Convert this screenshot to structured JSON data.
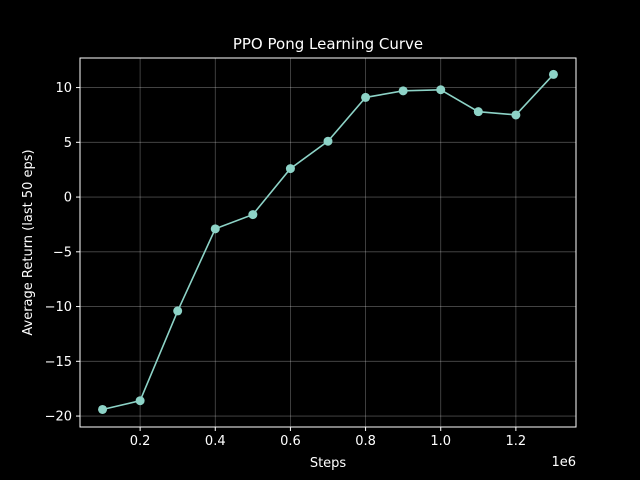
{
  "chart_data": {
    "type": "line",
    "title": "PPO Pong Learning Curve",
    "xlabel": "Steps",
    "ylabel": "Average Return (last 50 eps)",
    "x_offset_label": "1e6",
    "x": [
      100000,
      200000,
      300000,
      400000,
      500000,
      600000,
      700000,
      800000,
      900000,
      1000000,
      1100000,
      1200000,
      1300000
    ],
    "y": [
      -19.4,
      -18.6,
      -10.4,
      -2.9,
      -1.6,
      2.6,
      5.1,
      9.1,
      9.7,
      9.8,
      7.8,
      7.5,
      11.2
    ],
    "xlim": [
      40000,
      1360000
    ],
    "ylim": [
      -21,
      12.7
    ],
    "xticks": [
      200000,
      400000,
      600000,
      800000,
      1000000,
      1200000
    ],
    "xtick_labels": [
      "0.2",
      "0.4",
      "0.6",
      "0.8",
      "1.0",
      "1.2"
    ],
    "yticks": [
      -20,
      -15,
      -10,
      -5,
      0,
      5,
      10
    ],
    "ytick_labels": [
      "−20",
      "−15",
      "−10",
      "−5",
      "0",
      "5",
      "10"
    ],
    "grid": true,
    "line_color": "#8dd3c7",
    "background": "#000000",
    "foreground": "#ffffff"
  }
}
